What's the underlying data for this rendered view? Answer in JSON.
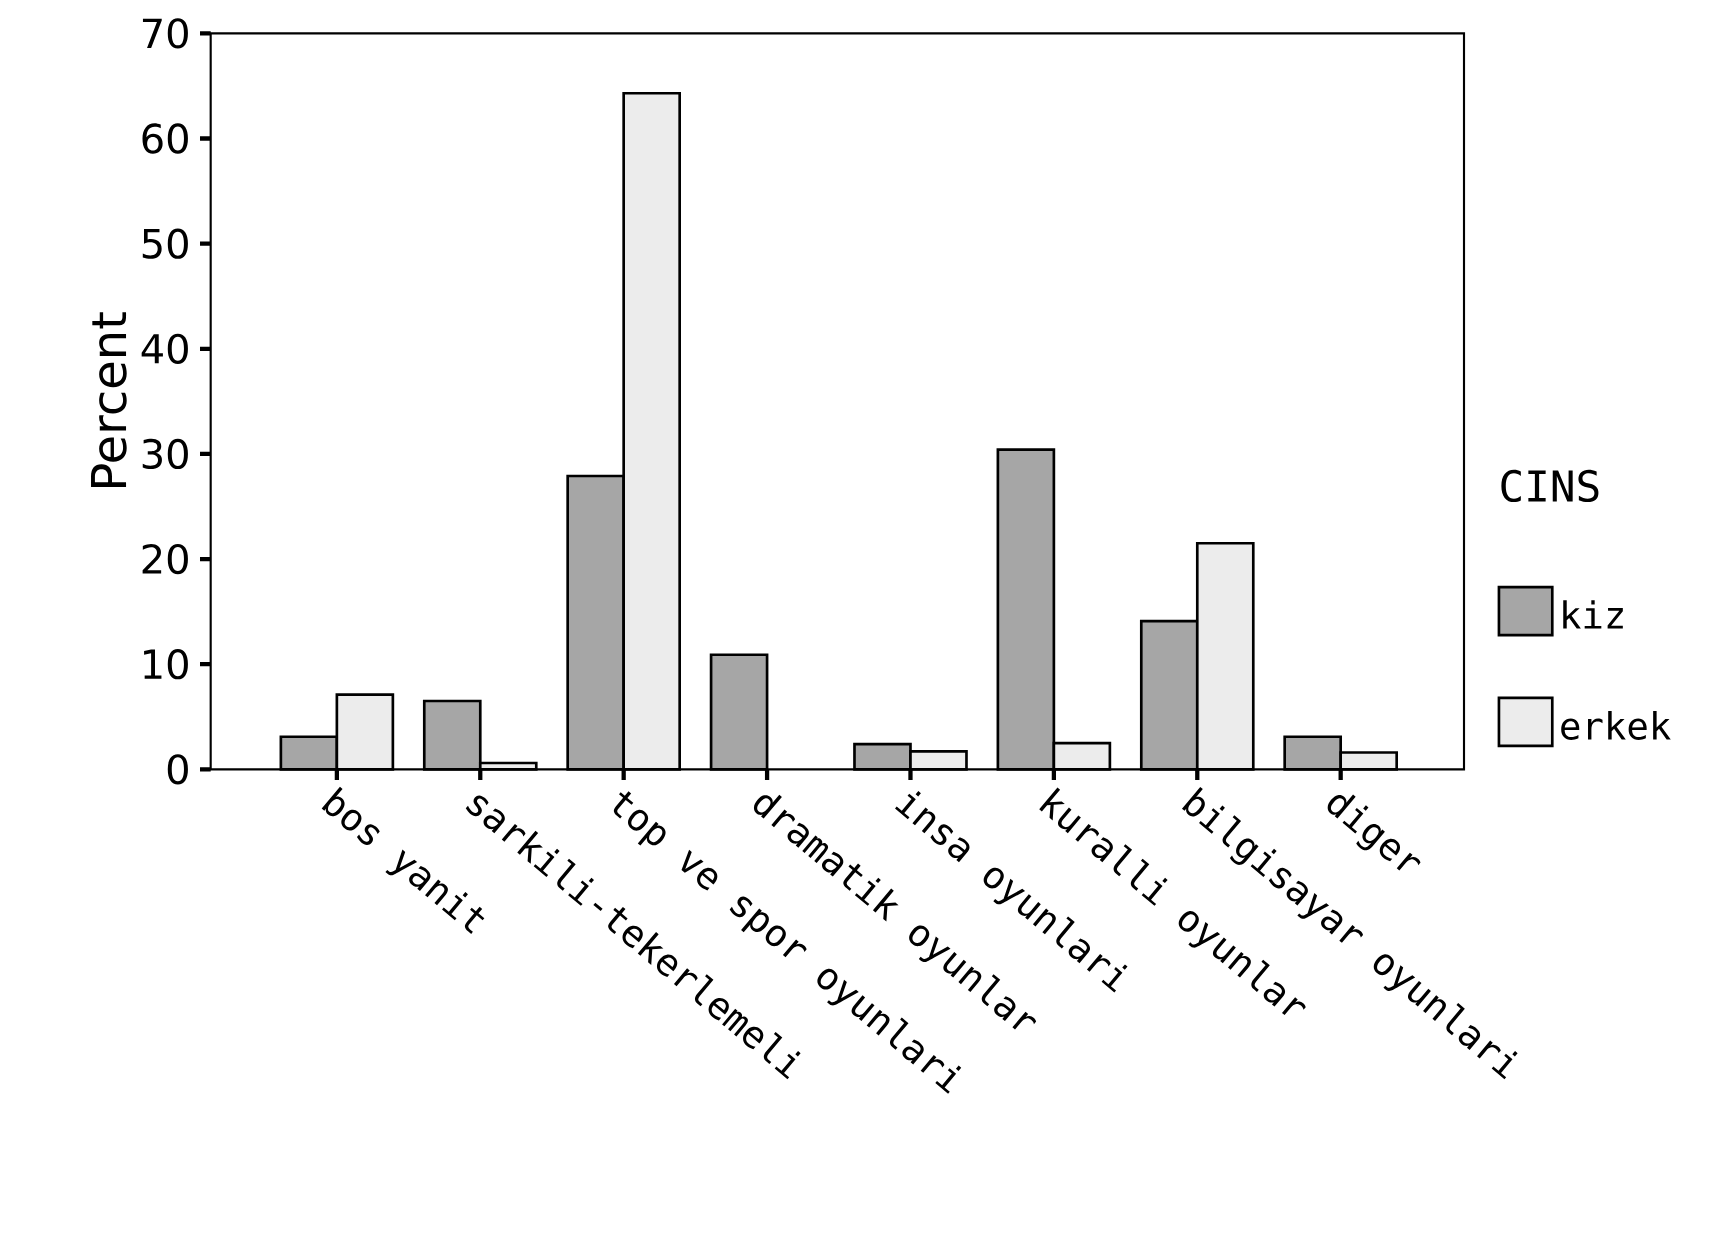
{
  "chart_data": {
    "type": "bar",
    "ylabel": "Percent",
    "legend_title": "CINS",
    "categories": [
      "bos yanit",
      "sarkili-tekerlemeli",
      "top ve spor oyunlari",
      "dramatik oyunlar",
      "insa oyunlari",
      "kuralli oyunlar",
      "bilgisayar oyunlari",
      "diger"
    ],
    "series": [
      {
        "name": "kiz",
        "color": "#a6a6a6",
        "values": [
          3.1,
          6.5,
          27.9,
          10.9,
          2.4,
          30.4,
          14.1,
          3.1
        ]
      },
      {
        "name": "erkek",
        "color": "#ececec",
        "values": [
          7.1,
          0.6,
          64.3,
          null,
          1.7,
          2.5,
          21.5,
          1.6
        ]
      }
    ],
    "ylim": [
      0,
      70
    ],
    "yticks": [
      0,
      10,
      20,
      30,
      40,
      50,
      60,
      70
    ],
    "grid": false,
    "legend": "right"
  }
}
